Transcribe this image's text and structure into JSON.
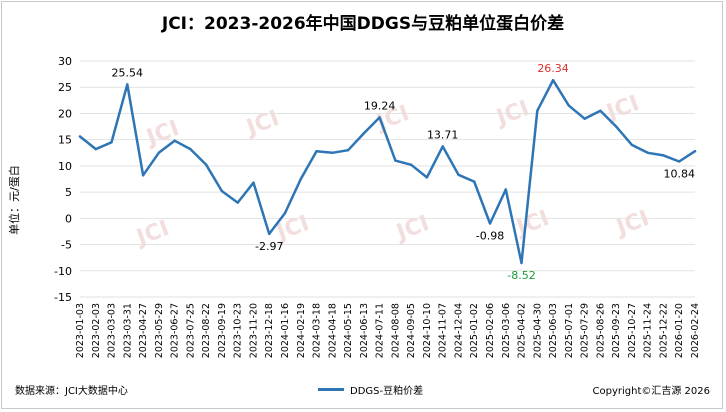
{
  "title": "JCI：2023-2026年中国DDGS与豆粕单位蛋白价差",
  "ylabel": "单位：元/蛋白",
  "source": "数据来源：JCI大数据中心",
  "copyright": "Copyright©汇吉源 2026",
  "watermark": "JCI",
  "chart_data": {
    "type": "line",
    "title": "JCI：2023-2026年中国DDGS与豆粕单位蛋白价差",
    "ylabel": "单位：元/蛋白",
    "ylim": [
      -15,
      30
    ],
    "yticks": [
      -15,
      -10,
      -5,
      0,
      5,
      10,
      15,
      20,
      25,
      30
    ],
    "grid": true,
    "legend": "bottom-center",
    "series_color": "#2e75b6",
    "x": [
      "2023-01-03",
      "2023-02-03",
      "2023-03-03",
      "2023-03-31",
      "2023-04-27",
      "2023-05-29",
      "2023-06-27",
      "2023-07-25",
      "2023-08-22",
      "2023-09-19",
      "2023-10-23",
      "2023-11-20",
      "2023-12-18",
      "2024-01-16",
      "2024-02-19",
      "2024-03-18",
      "2024-04-18",
      "2024-05-15",
      "2024-06-13",
      "2024-07-11",
      "2024-08-08",
      "2024-09-05",
      "2024-10-10",
      "2024-11-07",
      "2024-12-04",
      "2025-01-02",
      "2025-02-06",
      "2025-03-06",
      "2025-04-02",
      "2025-04-30",
      "2025-06-03",
      "2025-07-01",
      "2025-07-29",
      "2025-08-26",
      "2025-09-23",
      "2025-10-27",
      "2025-11-24",
      "2025-12-22",
      "2026-01-20",
      "2026-02-24"
    ],
    "series": [
      {
        "name": "DDGS-豆粕价差",
        "values": [
          15.6,
          13.2,
          14.5,
          25.54,
          8.2,
          12.5,
          14.8,
          13.2,
          10.2,
          5.2,
          3.0,
          6.8,
          -2.97,
          1.0,
          7.5,
          12.8,
          12.5,
          13.0,
          16.2,
          19.24,
          11.0,
          10.2,
          7.8,
          13.71,
          8.3,
          7.0,
          -0.98,
          5.5,
          -8.52,
          20.5,
          26.34,
          21.5,
          19.0,
          20.5,
          17.5,
          14.0,
          12.5,
          12.0,
          10.84,
          12.8
        ]
      }
    ],
    "annotations": [
      {
        "x": "2023-03-31",
        "y": 25.54,
        "text": "25.54",
        "color": "#000000"
      },
      {
        "x": "2023-12-18",
        "y": -2.97,
        "text": "-2.97",
        "color": "#000000"
      },
      {
        "x": "2024-07-11",
        "y": 19.24,
        "text": "19.24",
        "color": "#000000"
      },
      {
        "x": "2024-11-07",
        "y": 13.71,
        "text": "13.71",
        "color": "#000000"
      },
      {
        "x": "2025-02-06",
        "y": -0.98,
        "text": "-0.98",
        "color": "#000000"
      },
      {
        "x": "2025-04-02",
        "y": -8.52,
        "text": "-8.52",
        "color": "#1a9c3a"
      },
      {
        "x": "2025-06-03",
        "y": 26.34,
        "text": "26.34",
        "color": "#e03030"
      },
      {
        "x": "2026-01-20",
        "y": 10.84,
        "text": "10.84",
        "color": "#000000"
      }
    ]
  }
}
